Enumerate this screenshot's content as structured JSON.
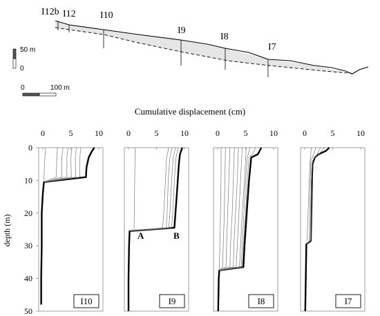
{
  "profile": {
    "borehole_labels": [
      "I12b",
      "I12",
      "I10",
      "I9",
      "I8",
      "I7"
    ],
    "vertical_scale_labels": [
      "50 m",
      "0"
    ],
    "horizontal_scale_labels": [
      "0",
      "100 m"
    ]
  },
  "chart_data": [
    {
      "type": "line",
      "panel": "I10",
      "title": "Cumulative displacement (cm)",
      "ylabel": "depth (m)",
      "xlim": [
        0,
        10
      ],
      "ylim": [
        50,
        0
      ],
      "x_ticks": [
        "0",
        "5",
        "10"
      ],
      "y_ticks": [
        "0",
        "10",
        "20",
        "30",
        "40",
        "50"
      ],
      "grid": false,
      "series": [
        {
          "name": "",
          "emphasis": "final",
          "points": [
            [
              9.2,
              0
            ],
            [
              8.8,
              1
            ],
            [
              8.2,
              3
            ],
            [
              7.8,
              6
            ],
            [
              7.7,
              9
            ],
            [
              0.2,
              10.5
            ],
            [
              0,
              14
            ],
            [
              -0.2,
              20
            ],
            [
              -0.2,
              30
            ],
            [
              -0.3,
              40
            ],
            [
              -0.3,
              48
            ]
          ]
        },
        {
          "emphasis": "intermediate",
          "points": [
            [
              2.6,
              0
            ],
            [
              2.5,
              3
            ],
            [
              2.4,
              9
            ],
            [
              0.2,
              10.5
            ]
          ]
        },
        {
          "emphasis": "intermediate",
          "points": [
            [
              3.6,
              0
            ],
            [
              3.4,
              3
            ],
            [
              3.4,
              9
            ],
            [
              0.2,
              10.5
            ]
          ]
        },
        {
          "emphasis": "intermediate",
          "points": [
            [
              4.5,
              0
            ],
            [
              4.3,
              3
            ],
            [
              4.3,
              9
            ],
            [
              0.2,
              10.5
            ]
          ]
        },
        {
          "emphasis": "intermediate",
          "points": [
            [
              5.2,
              0
            ],
            [
              5.0,
              3
            ],
            [
              5.1,
              9
            ],
            [
              0.2,
              10.5
            ]
          ]
        },
        {
          "emphasis": "intermediate",
          "points": [
            [
              6.0,
              0
            ],
            [
              5.8,
              3
            ],
            [
              5.9,
              9
            ],
            [
              0.2,
              10.5
            ]
          ]
        },
        {
          "emphasis": "intermediate",
          "points": [
            [
              6.8,
              0
            ],
            [
              6.6,
              3
            ],
            [
              6.6,
              9
            ],
            [
              0.2,
              10.5
            ]
          ]
        },
        {
          "emphasis": "intermediate",
          "points": [
            [
              0.5,
              0
            ],
            [
              0.3,
              5
            ],
            [
              0.2,
              10
            ]
          ]
        }
      ]
    },
    {
      "type": "line",
      "panel": "I9",
      "xlim": [
        0,
        10
      ],
      "ylim": [
        50,
        0
      ],
      "x_ticks": [
        "0",
        "5",
        "10"
      ],
      "annotations": [
        "A",
        "B"
      ],
      "series": [
        {
          "emphasis": "final",
          "points": [
            [
              9.6,
              0
            ],
            [
              9.2,
              2
            ],
            [
              9.0,
              5
            ],
            [
              8.6,
              15
            ],
            [
              8.2,
              24.5
            ],
            [
              0.2,
              25.5
            ],
            [
              0.1,
              30
            ],
            [
              0,
              40
            ],
            [
              0,
              50
            ]
          ]
        },
        {
          "emphasis": "intermediate",
          "points": [
            [
              7.2,
              0
            ],
            [
              6.8,
              3
            ],
            [
              6.6,
              10
            ],
            [
              6.3,
              20
            ],
            [
              6.1,
              24.5
            ],
            [
              0.2,
              25.5
            ]
          ]
        },
        {
          "emphasis": "intermediate",
          "points": [
            [
              7.8,
              0
            ],
            [
              7.4,
              3
            ],
            [
              7.1,
              10
            ],
            [
              6.9,
              20
            ],
            [
              6.7,
              24.5
            ],
            [
              0.2,
              25.5
            ]
          ]
        },
        {
          "emphasis": "intermediate",
          "points": [
            [
              8.4,
              0
            ],
            [
              8.0,
              3
            ],
            [
              7.7,
              10
            ],
            [
              7.4,
              20
            ],
            [
              7.2,
              24.5
            ],
            [
              0.2,
              25.5
            ]
          ]
        },
        {
          "emphasis": "intermediate",
          "points": [
            [
              8.9,
              0
            ],
            [
              8.5,
              3
            ],
            [
              8.2,
              10
            ],
            [
              7.9,
              20
            ],
            [
              7.7,
              24.5
            ],
            [
              0.2,
              25.5
            ]
          ]
        },
        {
          "emphasis": "intermediate",
          "points": [
            [
              1.2,
              0
            ],
            [
              1.1,
              10
            ],
            [
              1.0,
              25
            ]
          ]
        }
      ]
    },
    {
      "type": "line",
      "panel": "I8",
      "xlim": [
        0,
        10
      ],
      "ylim": [
        50,
        0
      ],
      "x_ticks": [
        "0",
        "5",
        "10"
      ],
      "series": [
        {
          "emphasis": "final",
          "points": [
            [
              7.8,
              0
            ],
            [
              7.2,
              2
            ],
            [
              6.0,
              3
            ],
            [
              5.6,
              10
            ],
            [
              5.2,
              20
            ],
            [
              4.8,
              30
            ],
            [
              4.6,
              36.5
            ],
            [
              0.3,
              37.5
            ],
            [
              0.2,
              40
            ],
            [
              0.1,
              50
            ]
          ]
        },
        {
          "emphasis": "intermediate",
          "points": [
            [
              0.6,
              0
            ],
            [
              0.6,
              10
            ],
            [
              0.5,
              20
            ],
            [
              0.4,
              30
            ],
            [
              0.3,
              37.5
            ]
          ]
        },
        {
          "emphasis": "intermediate",
          "points": [
            [
              1.4,
              0
            ],
            [
              1.3,
              10
            ],
            [
              1.2,
              20
            ],
            [
              1.0,
              30
            ],
            [
              0.9,
              36.5
            ],
            [
              0.3,
              37.5
            ]
          ]
        },
        {
          "emphasis": "intermediate",
          "points": [
            [
              2.2,
              0
            ],
            [
              2.0,
              10
            ],
            [
              1.8,
              20
            ],
            [
              1.6,
              30
            ],
            [
              1.5,
              36.5
            ],
            [
              0.3,
              37.5
            ]
          ]
        },
        {
          "emphasis": "intermediate",
          "points": [
            [
              3.0,
              0
            ],
            [
              2.8,
              10
            ],
            [
              2.6,
              20
            ],
            [
              2.3,
              30
            ],
            [
              2.2,
              36.5
            ],
            [
              0.3,
              37.5
            ]
          ]
        },
        {
          "emphasis": "intermediate",
          "points": [
            [
              3.7,
              0
            ],
            [
              3.5,
              10
            ],
            [
              3.2,
              20
            ],
            [
              2.9,
              30
            ],
            [
              2.8,
              36.5
            ],
            [
              0.3,
              37.5
            ]
          ]
        },
        {
          "emphasis": "intermediate",
          "points": [
            [
              4.4,
              0
            ],
            [
              4.1,
              10
            ],
            [
              3.8,
              20
            ],
            [
              3.5,
              30
            ],
            [
              3.3,
              36.5
            ],
            [
              0.3,
              37.5
            ]
          ]
        },
        {
          "emphasis": "intermediate",
          "points": [
            [
              5.1,
              0
            ],
            [
              4.8,
              10
            ],
            [
              4.4,
              20
            ],
            [
              4.1,
              30
            ],
            [
              3.9,
              36.5
            ],
            [
              0.3,
              37.5
            ]
          ]
        },
        {
          "emphasis": "intermediate",
          "points": [
            [
              5.8,
              0
            ],
            [
              5.3,
              3
            ],
            [
              5.0,
              10
            ],
            [
              4.7,
              20
            ],
            [
              4.4,
              30
            ],
            [
              4.2,
              36.5
            ],
            [
              0.3,
              37.5
            ]
          ]
        },
        {
          "emphasis": "intermediate",
          "points": [
            [
              6.8,
              0
            ],
            [
              6.2,
              2
            ],
            [
              5.6,
              3
            ],
            [
              5.3,
              10
            ],
            [
              5.0,
              20
            ],
            [
              4.6,
              30
            ],
            [
              4.4,
              36.5
            ],
            [
              0.3,
              37.5
            ]
          ]
        }
      ]
    },
    {
      "type": "line",
      "panel": "I7",
      "xlim": [
        0,
        10
      ],
      "ylim": [
        50,
        0
      ],
      "x_ticks": [
        "0",
        "5",
        "10"
      ],
      "series": [
        {
          "emphasis": "final",
          "points": [
            [
              4.4,
              0
            ],
            [
              3.8,
              1
            ],
            [
              2.5,
              2
            ],
            [
              1.8,
              3
            ],
            [
              1.4,
              5
            ],
            [
              1.3,
              10
            ],
            [
              1.2,
              20
            ],
            [
              1.1,
              28.5
            ],
            [
              0.3,
              29.5
            ],
            [
              0.2,
              40
            ],
            [
              0.1,
              50
            ]
          ]
        },
        {
          "emphasis": "intermediate",
          "points": [
            [
              1.2,
              0
            ],
            [
              1.0,
              3
            ],
            [
              0.8,
              10
            ],
            [
              0.6,
              20
            ],
            [
              0.4,
              28.5
            ]
          ]
        },
        {
          "emphasis": "intermediate",
          "points": [
            [
              2.0,
              0
            ],
            [
              1.6,
              2
            ],
            [
              1.1,
              4
            ],
            [
              1.0,
              10
            ],
            [
              0.9,
              20
            ],
            [
              0.8,
              28.5
            ],
            [
              0.3,
              29.5
            ]
          ]
        },
        {
          "emphasis": "intermediate",
          "points": [
            [
              2.8,
              0
            ],
            [
              2.2,
              2
            ],
            [
              1.4,
              4
            ],
            [
              1.2,
              10
            ],
            [
              1.1,
              20
            ],
            [
              1.0,
              28.5
            ],
            [
              0.3,
              29.5
            ]
          ]
        },
        {
          "emphasis": "intermediate",
          "points": [
            [
              3.5,
              0
            ],
            [
              2.8,
              1.5
            ],
            [
              1.7,
              3
            ],
            [
              1.3,
              5
            ],
            [
              1.2,
              10
            ],
            [
              1.1,
              28.5
            ]
          ]
        }
      ]
    }
  ]
}
